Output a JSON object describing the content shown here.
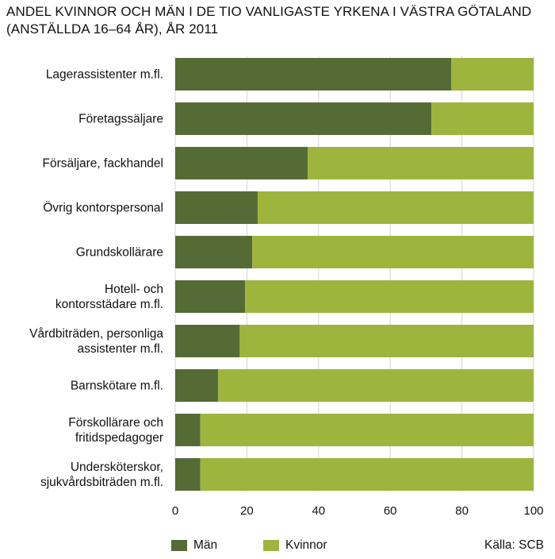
{
  "chart_data": {
    "type": "bar",
    "orientation": "horizontal",
    "stacked": true,
    "title": "ANDEL KVINNOR OCH MÄN I DE TIO VANLIGASTE YRKENA I VÄSTRA GÖTALAND",
    "subtitle": "(ANSTÄLLDA 16–64 ÅR), ÅR 2011",
    "categories": [
      [
        "Lagerassistenter m.fl."
      ],
      [
        "Företagssäljare"
      ],
      [
        "Försäljare, fackhandel"
      ],
      [
        "Övrig kontorspersonal"
      ],
      [
        "Grundskollärare"
      ],
      [
        "Hotell- och",
        "kontorsstädare m.fl."
      ],
      [
        "Vårdbiträden, personliga",
        "assistenter m.fl."
      ],
      [
        "Barnskötare m.fl."
      ],
      [
        "Förskollärare och",
        "fritidspedagoger"
      ],
      [
        "Undersköterskor,",
        "sjukvårdsbiträden m.fl."
      ]
    ],
    "series": [
      {
        "name": "Män",
        "color": "#556b35",
        "values": [
          77,
          71.5,
          37,
          23,
          21.5,
          19.5,
          18,
          12,
          7,
          7
        ]
      },
      {
        "name": "Kvinnor",
        "color": "#9db53d",
        "values": [
          23,
          28.5,
          63,
          77,
          78.5,
          80.5,
          82,
          88,
          93,
          93
        ]
      }
    ],
    "xlim": [
      0,
      100
    ],
    "xticks": [
      "0",
      "20",
      "40",
      "60",
      "80",
      "100"
    ],
    "grid": "vertical",
    "legend_position": "bottom-left",
    "source": "Källa: SCB"
  }
}
